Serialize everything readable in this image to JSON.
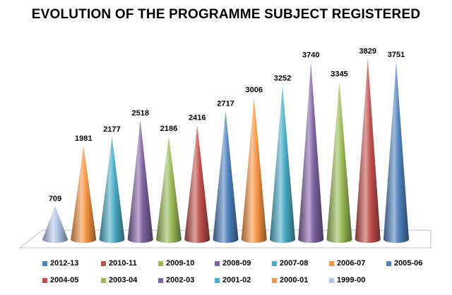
{
  "chart_data": {
    "type": "bar",
    "title": "EVOLUTION OF THE PROGRAMME SUBJECT REGISTERED",
    "categories": [
      "1999-00",
      "2000-01",
      "2001-02",
      "2002-03",
      "2003-04",
      "2004-05",
      "2005-06",
      "2006-07",
      "2007-08",
      "2008-09",
      "2009-10",
      "2010-11",
      "2012-13"
    ],
    "values": [
      709,
      1981,
      2177,
      2518,
      2186,
      2416,
      2717,
      3006,
      3252,
      3740,
      3345,
      3829,
      3751
    ],
    "colors": [
      "#b3c6e7",
      "#f79646",
      "#4bacc6",
      "#8064a2",
      "#9bbb59",
      "#c0504d",
      "#4f81bd",
      "#f79646",
      "#4bacc6",
      "#8064a2",
      "#9bbb59",
      "#c0504d",
      "#4f81bd"
    ],
    "ylim": [
      0,
      3900
    ],
    "grid": false,
    "legend_position": "bottom",
    "legend_order": [
      "2012-13",
      "2010-11",
      "2009-10",
      "2008-09",
      "2007-08",
      "2006-07",
      "2005-06",
      "2004-05",
      "2003-04",
      "2002-03",
      "2001-02",
      "2000-01",
      "1999-00"
    ]
  }
}
